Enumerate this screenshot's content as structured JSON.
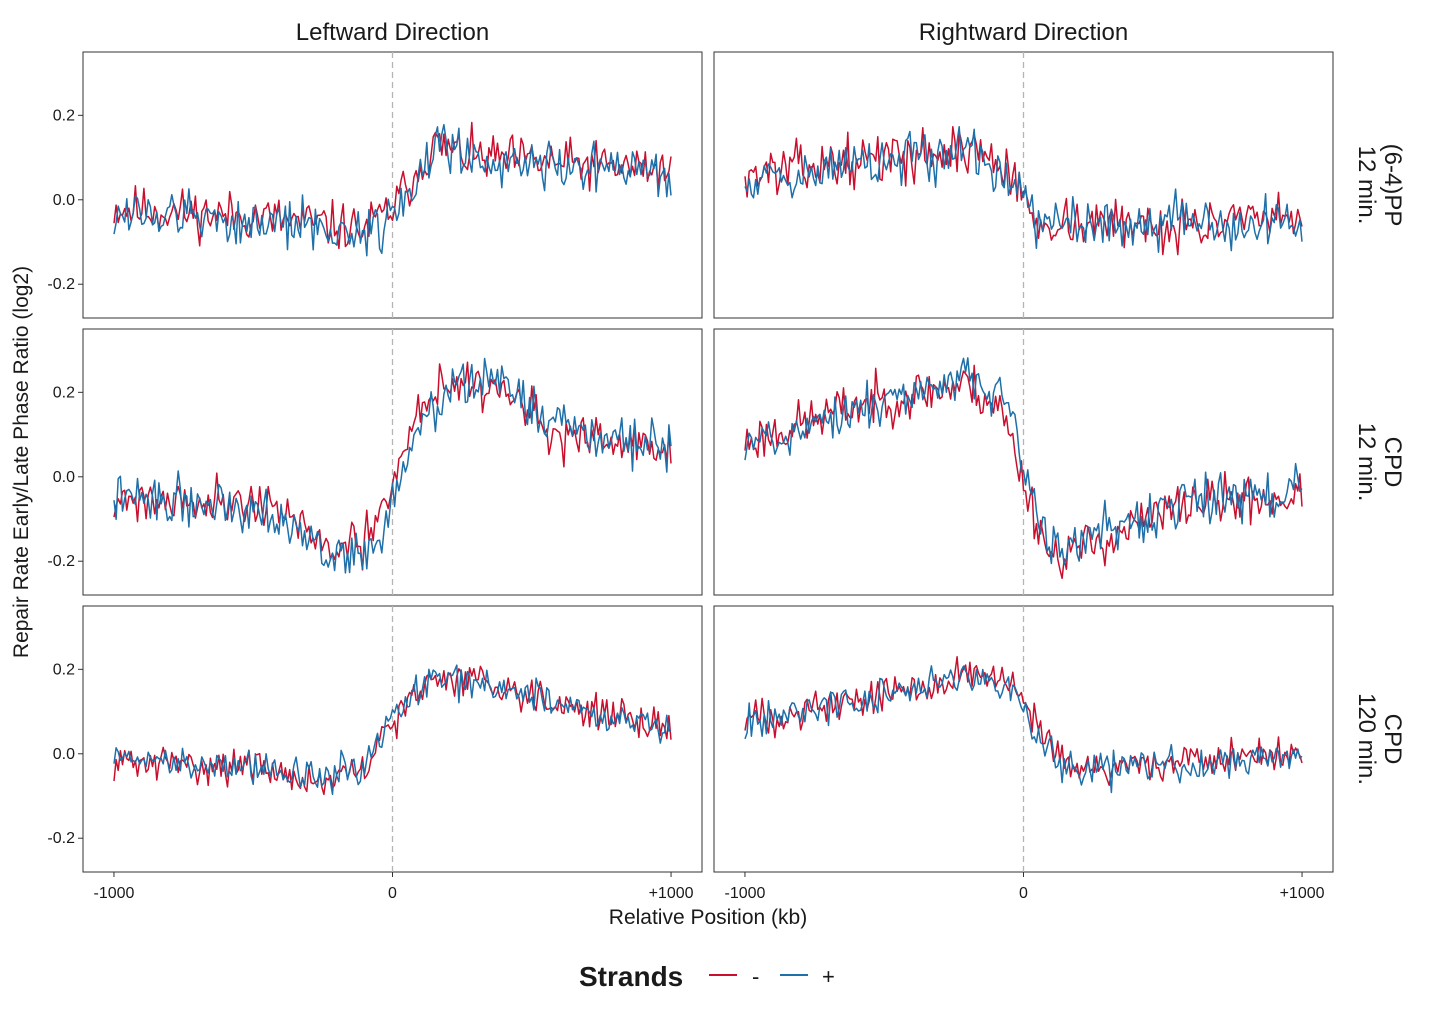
{
  "chart_data": {
    "type": "line",
    "ylabel": "Repair Rate Early/Late Phase Ratio (log2)",
    "xlabel": "Relative Position (kb)",
    "xlim": [
      -1000,
      1000
    ],
    "ylim": [
      -0.28,
      0.35
    ],
    "x_ticks": [
      "-1000",
      "0",
      "+1000"
    ],
    "y_ticks": [
      "-0.2",
      "0.0",
      "0.2"
    ],
    "reference_line_x": 0,
    "grid": false,
    "legend": {
      "title": "Strands",
      "position": "bottom",
      "entries": [
        {
          "label": "-",
          "color": "#c8102e"
        },
        {
          "label": "+",
          "color": "#1f6fa8"
        }
      ]
    },
    "columns": [
      {
        "title": "Leftward Direction"
      },
      {
        "title": "Rightward Direction"
      }
    ],
    "rows": [
      {
        "title_top": "(6-4)PP",
        "title_bottom": "12 min."
      },
      {
        "title_top": "CPD",
        "title_bottom": "12 min."
      },
      {
        "title_top": "CPD",
        "title_bottom": "120 min."
      }
    ],
    "panels": [
      {
        "row": 0,
        "col": 0,
        "series": [
          {
            "strand": "-",
            "trend": [
              [
                -1000,
                -0.02
              ],
              [
                -500,
                -0.04
              ],
              [
                -100,
                -0.07
              ],
              [
                0,
                -0.02
              ],
              [
                150,
                0.13
              ],
              [
                300,
                0.1
              ],
              [
                1000,
                0.07
              ]
            ],
            "noise": 0.028,
            "seed": 11
          },
          {
            "strand": "+",
            "trend": [
              [
                -1000,
                -0.03
              ],
              [
                -500,
                -0.05
              ],
              [
                -100,
                -0.08
              ],
              [
                0,
                -0.03
              ],
              [
                180,
                0.13
              ],
              [
                300,
                0.1
              ],
              [
                1000,
                0.06
              ]
            ],
            "noise": 0.03,
            "seed": 12
          }
        ]
      },
      {
        "row": 0,
        "col": 1,
        "series": [
          {
            "strand": "-",
            "trend": [
              [
                -1000,
                0.06
              ],
              [
                -500,
                0.1
              ],
              [
                -150,
                0.12
              ],
              [
                0,
                0.02
              ],
              [
                30,
                -0.05
              ],
              [
                500,
                -0.06
              ],
              [
                1000,
                -0.05
              ]
            ],
            "noise": 0.028,
            "seed": 13
          },
          {
            "strand": "+",
            "trend": [
              [
                -1000,
                0.05
              ],
              [
                -500,
                0.09
              ],
              [
                -150,
                0.11
              ],
              [
                0,
                0.02
              ],
              [
                30,
                -0.06
              ],
              [
                500,
                -0.05
              ],
              [
                1000,
                -0.06
              ]
            ],
            "noise": 0.03,
            "seed": 14
          }
        ]
      },
      {
        "row": 1,
        "col": 0,
        "series": [
          {
            "strand": "-",
            "trend": [
              [
                -1000,
                -0.05
              ],
              [
                -450,
                -0.06
              ],
              [
                -200,
                -0.18
              ],
              [
                -80,
                -0.15
              ],
              [
                0,
                -0.02
              ],
              [
                100,
                0.18
              ],
              [
                250,
                0.23
              ],
              [
                450,
                0.2
              ],
              [
                550,
                0.1
              ],
              [
                1000,
                0.06
              ]
            ],
            "noise": 0.026,
            "seed": 21
          },
          {
            "strand": "+",
            "trend": [
              [
                -1000,
                -0.05
              ],
              [
                -450,
                -0.07
              ],
              [
                -200,
                -0.2
              ],
              [
                -60,
                -0.16
              ],
              [
                0,
                -0.06
              ],
              [
                100,
                0.12
              ],
              [
                250,
                0.23
              ],
              [
                450,
                0.21
              ],
              [
                550,
                0.12
              ],
              [
                1000,
                0.07
              ]
            ],
            "noise": 0.028,
            "seed": 22
          }
        ]
      },
      {
        "row": 1,
        "col": 1,
        "series": [
          {
            "strand": "-",
            "trend": [
              [
                -1000,
                0.08
              ],
              [
                -600,
                0.17
              ],
              [
                -200,
                0.22
              ],
              [
                -80,
                0.16
              ],
              [
                30,
                -0.07
              ],
              [
                100,
                -0.19
              ],
              [
                250,
                -0.16
              ],
              [
                600,
                -0.06
              ],
              [
                1000,
                -0.05
              ]
            ],
            "noise": 0.028,
            "seed": 23
          },
          {
            "strand": "+",
            "trend": [
              [
                -1000,
                0.07
              ],
              [
                -600,
                0.16
              ],
              [
                -200,
                0.23
              ],
              [
                -50,
                0.18
              ],
              [
                60,
                -0.1
              ],
              [
                130,
                -0.17
              ],
              [
                250,
                -0.15
              ],
              [
                600,
                -0.05
              ],
              [
                1000,
                -0.04
              ]
            ],
            "noise": 0.028,
            "seed": 24
          }
        ]
      },
      {
        "row": 2,
        "col": 0,
        "series": [
          {
            "strand": "-",
            "trend": [
              [
                -1000,
                -0.02
              ],
              [
                -500,
                -0.03
              ],
              [
                -250,
                -0.07
              ],
              [
                -100,
                -0.04
              ],
              [
                0,
                0.08
              ],
              [
                150,
                0.18
              ],
              [
                300,
                0.18
              ],
              [
                600,
                0.12
              ],
              [
                1000,
                0.06
              ]
            ],
            "noise": 0.02,
            "seed": 31
          },
          {
            "strand": "+",
            "trend": [
              [
                -1000,
                -0.01
              ],
              [
                -500,
                -0.03
              ],
              [
                -250,
                -0.06
              ],
              [
                -100,
                -0.03
              ],
              [
                0,
                0.09
              ],
              [
                150,
                0.18
              ],
              [
                300,
                0.17
              ],
              [
                600,
                0.12
              ],
              [
                1000,
                0.06
              ]
            ],
            "noise": 0.02,
            "seed": 32
          }
        ]
      },
      {
        "row": 2,
        "col": 1,
        "series": [
          {
            "strand": "-",
            "trend": [
              [
                -1000,
                0.08
              ],
              [
                -500,
                0.14
              ],
              [
                -200,
                0.19
              ],
              [
                -50,
                0.17
              ],
              [
                50,
                0.06
              ],
              [
                150,
                -0.04
              ],
              [
                500,
                -0.02
              ],
              [
                1000,
                0.0
              ]
            ],
            "noise": 0.022,
            "seed": 33
          },
          {
            "strand": "+",
            "trend": [
              [
                -1000,
                0.07
              ],
              [
                -500,
                0.14
              ],
              [
                -200,
                0.18
              ],
              [
                -50,
                0.16
              ],
              [
                50,
                0.05
              ],
              [
                150,
                -0.04
              ],
              [
                500,
                -0.02
              ],
              [
                1000,
                -0.01
              ]
            ],
            "noise": 0.022,
            "seed": 34
          }
        ]
      }
    ]
  }
}
